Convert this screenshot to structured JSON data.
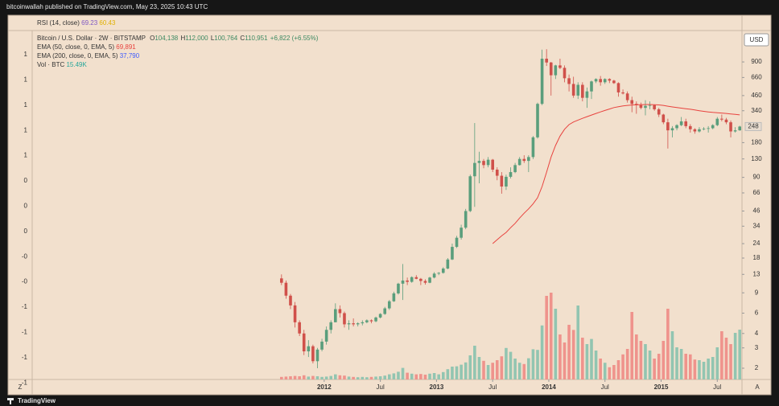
{
  "header": {
    "publisher": "bitcoinwallah published on TradingView.com, May 23, 2025 10:43 UTC",
    "brand": "TradingView"
  },
  "rsi_pane": {
    "title": "RSI (14, close)",
    "value1": "69.23",
    "value2": "60.43",
    "axis_labels": [
      "1",
      "1",
      "1",
      "1",
      "1",
      "0",
      "0",
      "0",
      "-0",
      "-0",
      "-1",
      "-1",
      "-1",
      "-1"
    ]
  },
  "legend": {
    "symbol": "Bitcoin / U.S. Dollar · 2W · BITSTAMP",
    "ohlc": [
      {
        "key": "O",
        "value": "104,138"
      },
      {
        "key": "H",
        "value": "112,000"
      },
      {
        "key": "L",
        "value": "100,764"
      },
      {
        "key": "C",
        "value": "110,951"
      }
    ],
    "change": "+6,822 (+6.55%)",
    "ema50": {
      "label": "EMA (50, close, 0, EMA, 5)",
      "value": "69,891"
    },
    "ema200": {
      "label": "EMA (200, close, 0, EMA, 5)",
      "value": "37,790"
    },
    "volume": {
      "label": "Vol · BTC",
      "value": "15.49K"
    }
  },
  "currency_button": "USD",
  "scale_buttons": [
    "Z",
    "A"
  ],
  "chart_data": {
    "type": "candlestick",
    "log": true,
    "ylim": [
      1.65,
      1630
    ],
    "yticks": [
      900,
      660,
      460,
      340,
      180,
      130,
      90,
      66,
      46,
      34,
      24,
      18,
      13,
      9,
      6,
      4,
      3,
      2
    ],
    "xlim": [
      2009.4,
      2015.72
    ],
    "xticks": [
      2012,
      {
        "value": 2012.5,
        "label": "Jul"
      },
      2013,
      {
        "value": 2013.5,
        "label": "Jul"
      },
      2014,
      {
        "value": 2014.5,
        "label": "Jul"
      },
      2015,
      {
        "value": 2015.5,
        "label": "Jul"
      }
    ],
    "up_color": "#5a9e7c",
    "down_color": "#d0504a",
    "volume_up_color": "#92c5b1",
    "volume_down_color": "#ef938c",
    "ema_color": "#e8433f",
    "volume_lim": [
      0,
      30
    ],
    "x": [
      2011.62,
      2011.66,
      2011.7,
      2011.74,
      2011.78,
      2011.82,
      2011.86,
      2011.9,
      2011.94,
      2011.98,
      2012.02,
      2012.06,
      2012.1,
      2012.14,
      2012.18,
      2012.22,
      2012.26,
      2012.3,
      2012.34,
      2012.38,
      2012.42,
      2012.46,
      2012.5,
      2012.54,
      2012.58,
      2012.62,
      2012.66,
      2012.7,
      2012.74,
      2012.78,
      2012.82,
      2012.86,
      2012.9,
      2012.94,
      2012.98,
      2013.02,
      2013.06,
      2013.1,
      2013.14,
      2013.18,
      2013.22,
      2013.26,
      2013.3,
      2013.34,
      2013.38,
      2013.42,
      2013.46,
      2013.5,
      2013.54,
      2013.58,
      2013.62,
      2013.66,
      2013.7,
      2013.74,
      2013.78,
      2013.82,
      2013.86,
      2013.9,
      2013.94,
      2013.98,
      2014.02,
      2014.06,
      2014.1,
      2014.14,
      2014.18,
      2014.22,
      2014.26,
      2014.3,
      2014.34,
      2014.38,
      2014.42,
      2014.46,
      2014.5,
      2014.54,
      2014.58,
      2014.62,
      2014.66,
      2014.7,
      2014.74,
      2014.78,
      2014.82,
      2014.86,
      2014.9,
      2014.94,
      2014.98,
      2015.02,
      2015.06,
      2015.1,
      2015.14,
      2015.18,
      2015.22,
      2015.26,
      2015.3,
      2015.34,
      2015.38,
      2015.42,
      2015.46,
      2015.5,
      2015.54,
      2015.58,
      2015.62,
      2015.66,
      2015.7
    ],
    "candles": [
      [
        12,
        13,
        10.5,
        11
      ],
      [
        11,
        11.5,
        8,
        8.5
      ],
      [
        8.5,
        8.8,
        6.5,
        7
      ],
      [
        7,
        7.5,
        4.5,
        5
      ],
      [
        5,
        5.2,
        3.8,
        4
      ],
      [
        4,
        4.3,
        2.6,
        2.8
      ],
      [
        2.8,
        3.5,
        2.5,
        3.1
      ],
      [
        3.1,
        3.2,
        2.2,
        2.3
      ],
      [
        2.3,
        3,
        2,
        2.9
      ],
      [
        2.9,
        3.6,
        2.8,
        3.4
      ],
      [
        3.4,
        4.6,
        3.2,
        4.3
      ],
      [
        4.3,
        5.2,
        4,
        5
      ],
      [
        5,
        7.3,
        5,
        6.5
      ],
      [
        6.5,
        7,
        5.5,
        6
      ],
      [
        6,
        6.2,
        4.5,
        4.8
      ],
      [
        4.8,
        5.2,
        4.3,
        4.9
      ],
      [
        4.9,
        5.4,
        4.6,
        4.8
      ],
      [
        4.8,
        5,
        4.6,
        4.9
      ],
      [
        4.9,
        5.2,
        4.7,
        5
      ],
      [
        5,
        5.3,
        4.9,
        5.2
      ],
      [
        5.2,
        5.3,
        4.9,
        5.1
      ],
      [
        5.1,
        5.6,
        5,
        5.5
      ],
      [
        5.5,
        6,
        5.4,
        5.9
      ],
      [
        5.9,
        6.8,
        5.8,
        6.6
      ],
      [
        6.6,
        7.8,
        6.4,
        7.6
      ],
      [
        7.6,
        9.2,
        7.5,
        8.9
      ],
      [
        8.9,
        11,
        8.7,
        10.8
      ],
      [
        10.8,
        16,
        7.8,
        11.5
      ],
      [
        11.5,
        12.2,
        10.5,
        11.2
      ],
      [
        11.2,
        12.5,
        11,
        12.3
      ],
      [
        12.3,
        12.8,
        11.8,
        11.9
      ],
      [
        11.9,
        12.1,
        10.5,
        11.4
      ],
      [
        11.4,
        11.8,
        10.6,
        11
      ],
      [
        11,
        12.4,
        10.9,
        12.2
      ],
      [
        12.2,
        13.6,
        12,
        13.2
      ],
      [
        13.2,
        13.6,
        12.8,
        13.4
      ],
      [
        13.4,
        15,
        13.2,
        14.6
      ],
      [
        14.6,
        18,
        14.4,
        17.5
      ],
      [
        17.5,
        24,
        17.3,
        22.5
      ],
      [
        22.5,
        28,
        22,
        27
      ],
      [
        27,
        35,
        26,
        33
      ],
      [
        33,
        48,
        32,
        46
      ],
      [
        46,
        95,
        45,
        92
      ],
      [
        92,
        266,
        50,
        120
      ],
      [
        120,
        150,
        80,
        125
      ],
      [
        125,
        130,
        108,
        115
      ],
      [
        115,
        135,
        110,
        128
      ],
      [
        128,
        130,
        100,
        105
      ],
      [
        105,
        110,
        85,
        93
      ],
      [
        93,
        100,
        65,
        75
      ],
      [
        75,
        95,
        70,
        91
      ],
      [
        91,
        110,
        88,
        100
      ],
      [
        100,
        120,
        98,
        115
      ],
      [
        115,
        135,
        114,
        130
      ],
      [
        130,
        140,
        120,
        125
      ],
      [
        125,
        140,
        100,
        135
      ],
      [
        135,
        205,
        130,
        200
      ],
      [
        200,
        400,
        195,
        390
      ],
      [
        390,
        1150,
        380,
        960
      ],
      [
        960,
        1160,
        830,
        890
      ],
      [
        890,
        900,
        460,
        690
      ],
      [
        690,
        850,
        640,
        840
      ],
      [
        840,
        960,
        780,
        800
      ],
      [
        800,
        840,
        600,
        650
      ],
      [
        650,
        700,
        500,
        580
      ],
      [
        580,
        670,
        440,
        460
      ],
      [
        460,
        600,
        430,
        570
      ],
      [
        570,
        600,
        410,
        440
      ],
      [
        440,
        540,
        360,
        500
      ],
      [
        500,
        620,
        430,
        610
      ],
      [
        610,
        650,
        590,
        640
      ],
      [
        640,
        680,
        560,
        600
      ],
      [
        600,
        650,
        580,
        640
      ],
      [
        640,
        650,
        590,
        620
      ],
      [
        620,
        630,
        580,
        590
      ],
      [
        590,
        600,
        450,
        490
      ],
      [
        490,
        520,
        470,
        480
      ],
      [
        480,
        500,
        400,
        420
      ],
      [
        420,
        450,
        330,
        390
      ],
      [
        390,
        410,
        320,
        380
      ],
      [
        380,
        400,
        350,
        360
      ],
      [
        360,
        420,
        310,
        375
      ],
      [
        375,
        410,
        350,
        380
      ],
      [
        380,
        385,
        340,
        350
      ],
      [
        350,
        360,
        300,
        315
      ],
      [
        315,
        320,
        260,
        270
      ],
      [
        270,
        290,
        160,
        230
      ],
      [
        230,
        250,
        200,
        240
      ],
      [
        240,
        260,
        230,
        255
      ],
      [
        255,
        300,
        250,
        275
      ],
      [
        275,
        290,
        240,
        250
      ],
      [
        250,
        260,
        220,
        235
      ],
      [
        235,
        240,
        215,
        225
      ],
      [
        225,
        245,
        220,
        235
      ],
      [
        235,
        245,
        230,
        238
      ],
      [
        238,
        250,
        220,
        240
      ],
      [
        240,
        260,
        235,
        255
      ],
      [
        255,
        300,
        250,
        290
      ],
      [
        290,
        315,
        275,
        285
      ],
      [
        285,
        295,
        260,
        270
      ],
      [
        270,
        280,
        200,
        225
      ],
      [
        225,
        245,
        220,
        230
      ],
      [
        230,
        252,
        228,
        248
      ]
    ],
    "volume": [
      0.8,
      0.9,
      1.0,
      1.1,
      1.0,
      1.3,
      0.9,
      1.1,
      1.0,
      0.8,
      0.9,
      1.1,
      1.6,
      1.3,
      1.2,
      0.9,
      0.8,
      0.7,
      0.8,
      0.7,
      0.8,
      0.9,
      1.0,
      1.2,
      1.6,
      1.9,
      2.4,
      3.6,
      2.1,
      1.8,
      1.6,
      1.7,
      1.5,
      1.8,
      2.0,
      1.6,
      2.3,
      3.2,
      4.0,
      4.1,
      4.6,
      5.3,
      7.5,
      10.5,
      7.0,
      5.8,
      4.5,
      5.2,
      6.0,
      7.2,
      9.8,
      8.6,
      6.5,
      5.2,
      4.8,
      6.6,
      9.4,
      9.2,
      16.8,
      26.0,
      27.0,
      22.0,
      14.0,
      11.5,
      17.0,
      15.4,
      23.0,
      13.0,
      11.0,
      12.6,
      9.0,
      6.5,
      5.2,
      3.8,
      4.5,
      6.0,
      7.8,
      9.5,
      21.0,
      14.0,
      12.0,
      11.0,
      9.0,
      6.5,
      8.0,
      12.0,
      22.0,
      15.0,
      10.0,
      9.5,
      8.0,
      7.8,
      6.2,
      6.0,
      5.5,
      6.5,
      7.0,
      10.0,
      15.0,
      13.0,
      11.0,
      14.5,
      15.49
    ],
    "ema50": [
      null,
      null,
      null,
      null,
      null,
      null,
      null,
      null,
      null,
      null,
      null,
      null,
      null,
      null,
      null,
      null,
      null,
      null,
      null,
      null,
      null,
      null,
      null,
      null,
      null,
      null,
      null,
      null,
      null,
      null,
      null,
      null,
      null,
      null,
      null,
      null,
      null,
      null,
      null,
      null,
      null,
      null,
      null,
      null,
      null,
      null,
      null,
      24,
      26,
      28,
      30,
      33,
      36,
      40,
      44,
      48,
      53,
      60,
      75,
      100,
      135,
      170,
      205,
      235,
      258,
      272,
      282,
      292,
      302,
      312,
      322,
      332,
      342,
      352,
      362,
      368,
      374,
      378,
      381,
      383,
      384,
      385,
      385,
      384,
      382,
      378,
      372,
      367,
      362,
      358,
      354,
      350,
      345,
      340,
      336,
      332,
      329,
      327,
      325,
      322,
      319,
      316,
      313
    ]
  }
}
